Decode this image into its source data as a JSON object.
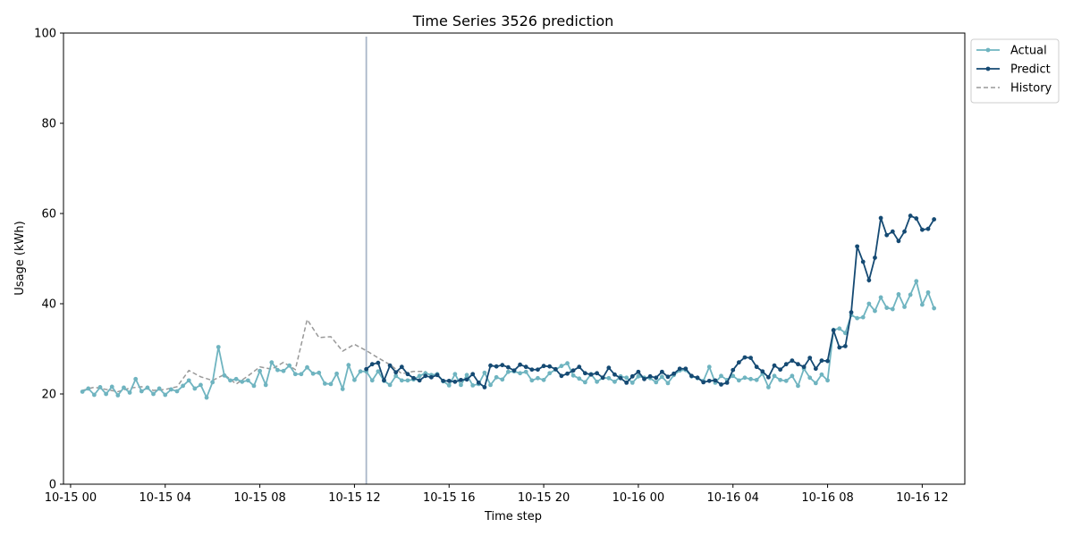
{
  "chart_data": {
    "type": "line",
    "title": "Time Series 3526 prediction",
    "xlabel": "Time step",
    "ylabel": "Usage (kWh)",
    "ylim": [
      0,
      100
    ],
    "yticks": [
      0,
      20,
      40,
      60,
      80,
      100
    ],
    "xlim": [
      "2023-10-14 23:42",
      "2023-10-16 13:48"
    ],
    "xticks": [
      {
        "t": "2023-10-15 00:00",
        "label": "10-15 00"
      },
      {
        "t": "2023-10-15 04:00",
        "label": "10-15 04"
      },
      {
        "t": "2023-10-15 08:00",
        "label": "10-15 08"
      },
      {
        "t": "2023-10-15 12:00",
        "label": "10-15 12"
      },
      {
        "t": "2023-10-15 16:00",
        "label": "10-15 16"
      },
      {
        "t": "2023-10-15 20:00",
        "label": "10-15 20"
      },
      {
        "t": "2023-10-16 00:00",
        "label": "10-16 00"
      },
      {
        "t": "2023-10-16 04:00",
        "label": "10-16 04"
      },
      {
        "t": "2023-10-16 08:00",
        "label": "10-16 08"
      },
      {
        "t": "2023-10-16 12:00",
        "label": "10-16 12"
      }
    ],
    "split_time": "2023-10-15 12:30",
    "split_color": "#aab6c8",
    "grid": false,
    "legend_position": "upper-right-outside",
    "actual_x": {
      "start": "2023-10-15 00:30",
      "step_minutes": 15
    },
    "prediction_x": {
      "start": "2023-10-15 12:30",
      "step_minutes": 15
    },
    "history_x": {
      "start": "2023-10-15 00:30",
      "step_minutes": 30
    },
    "series": [
      {
        "name": "Actual",
        "color": "#6fb4c0",
        "style": "solid-marker",
        "values": [
          20.5,
          21.2,
          19.8,
          21.5,
          20.0,
          21.6,
          19.7,
          21.4,
          20.3,
          23.3,
          20.6,
          21.4,
          20.0,
          21.2,
          19.8,
          21.0,
          20.6,
          21.8,
          23.0,
          21.2,
          22.0,
          19.2,
          22.6,
          30.4,
          24.1,
          23.0,
          23.3,
          22.7,
          23.0,
          21.8,
          25.1,
          22.0,
          27.0,
          25.3,
          25.1,
          26.3,
          24.4,
          24.4,
          25.9,
          24.5,
          24.7,
          22.3,
          22.2,
          24.5,
          21.1,
          26.4,
          23.1,
          25.0,
          25.0,
          23.0,
          25.0,
          22.9,
          22.0,
          24.0,
          23.0,
          23.0,
          23.2,
          24.0,
          24.6,
          24.2,
          24.4,
          22.8,
          21.9,
          24.4,
          22.0,
          24.2,
          21.9,
          22.2,
          24.7,
          22.0,
          23.7,
          23.2,
          24.9,
          25.0,
          24.6,
          24.9,
          23.0,
          23.5,
          23.1,
          24.6,
          25.4,
          26.2,
          26.8,
          24.1,
          23.4,
          22.6,
          24.4,
          22.7,
          23.6,
          23.5,
          22.7,
          23.9,
          23.6,
          22.5,
          23.9,
          23.6,
          23.5,
          22.6,
          23.8,
          22.4,
          24.2,
          25.2,
          25.3,
          23.9,
          23.5,
          22.9,
          26.0,
          22.5,
          24.0,
          23.1,
          24.0,
          23.0,
          23.6,
          23.3,
          23.1,
          24.5,
          21.5,
          24.0,
          23.1,
          22.9,
          24.0,
          21.8,
          25.6,
          23.6,
          22.4,
          24.3,
          23.0,
          34.2,
          34.5,
          33.5,
          37.5,
          36.8,
          37.0,
          40.0,
          38.4,
          41.4,
          39.1,
          38.8,
          42.1,
          39.3,
          42.0,
          45.0,
          39.8,
          42.5,
          39.0
        ]
      },
      {
        "name": "Predict",
        "color": "#154a73",
        "style": "solid-marker",
        "values": [
          25.5,
          26.6,
          26.9,
          23.0,
          26.3,
          24.8,
          26.0,
          24.4,
          23.5,
          23.0,
          24.0,
          23.7,
          24.2,
          22.9,
          22.9,
          22.7,
          23.1,
          23.2,
          24.4,
          22.5,
          21.5,
          26.3,
          26.1,
          26.4,
          25.9,
          25.2,
          26.5,
          26.0,
          25.4,
          25.4,
          26.2,
          26.1,
          25.5,
          24.0,
          24.5,
          25.2,
          26.0,
          24.6,
          24.3,
          24.6,
          23.6,
          25.8,
          24.3,
          23.5,
          22.5,
          23.9,
          24.9,
          23.3,
          23.9,
          23.6,
          24.9,
          23.8,
          24.5,
          25.6,
          25.6,
          24.0,
          23.6,
          22.6,
          22.9,
          23.0,
          22.1,
          22.5,
          25.3,
          27.0,
          28.1,
          28.0,
          26.0,
          25.0,
          23.7,
          26.3,
          25.4,
          26.6,
          27.4,
          26.6,
          26.0,
          28.0,
          25.6,
          27.4,
          27.3,
          34.1,
          30.3,
          30.6,
          38.1,
          52.7,
          49.3,
          45.2,
          50.2,
          59.0,
          55.2,
          56.0,
          53.9,
          56.0,
          59.5,
          58.9,
          56.4,
          56.6,
          58.7
        ]
      },
      {
        "name": "History",
        "color": "#999999",
        "style": "dashed",
        "values": [
          20.8,
          21.5,
          21.0,
          20.5,
          21.3,
          21.6,
          20.8,
          21.0,
          21.6,
          25.2,
          23.8,
          23.0,
          24.3,
          22.2,
          24.0,
          26.0,
          25.5,
          27.0,
          25.4,
          36.5,
          32.5,
          32.7,
          29.5,
          31.0,
          29.6,
          28.0,
          26.5,
          24.5,
          25.0,
          25.0
        ]
      }
    ]
  }
}
